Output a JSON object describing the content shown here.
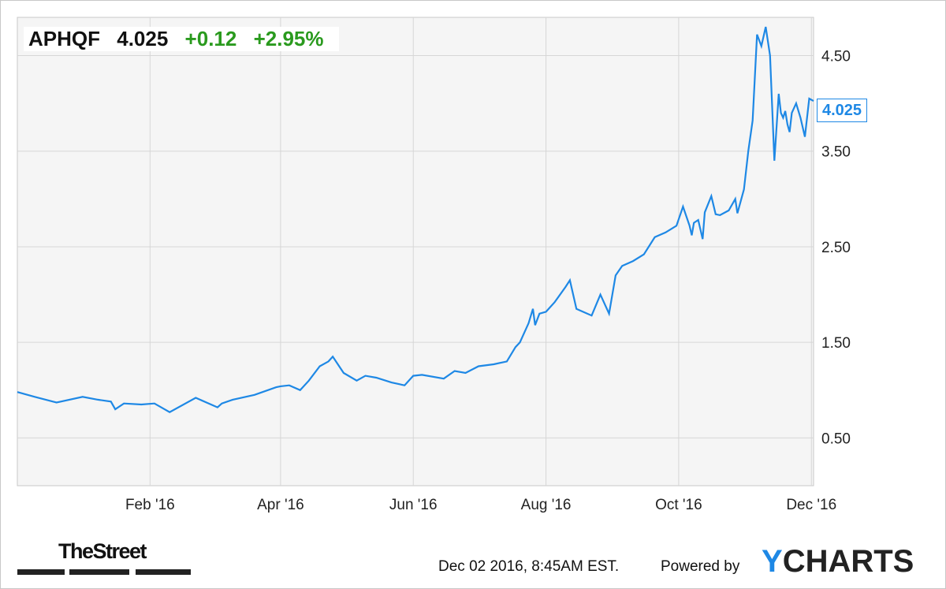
{
  "header": {
    "ticker": "APHQF",
    "price": "4.025",
    "change": "+0.12",
    "change_pct": "+2.95%"
  },
  "last_value_label": "4.025",
  "footer": {
    "timestamp": "Dec 02 2016, 8:45AM EST.",
    "powered_by": "Powered by",
    "brand_initial": "Y",
    "brand_rest": "CHARTS",
    "publisher_logo": "TheStreet"
  },
  "colors": {
    "line": "#1e88e5",
    "up": "#2a9a1e",
    "plot_bg": "#f5f5f5",
    "grid": "#d6d6d6"
  },
  "chart_data": {
    "type": "line",
    "title": "",
    "xlabel": "",
    "ylabel": "",
    "ylim": [
      0.0,
      4.9
    ],
    "xlim": [
      "2015-12-02",
      "2016-12-02"
    ],
    "y_ticks": [
      0.5,
      1.5,
      2.5,
      3.5,
      4.5
    ],
    "y_tick_labels": [
      "0.50",
      "1.50",
      "2.50",
      "3.50",
      "4.50"
    ],
    "x_ticks": [
      "2016-02-01",
      "2016-04-01",
      "2016-06-01",
      "2016-08-01",
      "2016-10-01",
      "2016-12-01"
    ],
    "x_tick_labels": [
      "Feb '16",
      "Apr '16",
      "Jun '16",
      "Aug '16",
      "Oct '16",
      "Dec '16"
    ],
    "grid": true,
    "y_axis_position": "right",
    "series": [
      {
        "x": [
          "2015-12-02",
          "2015-12-10",
          "2015-12-20",
          "2016-01-01",
          "2016-01-08",
          "2016-01-14",
          "2016-01-16",
          "2016-01-20",
          "2016-01-28",
          "2016-02-03",
          "2016-02-10",
          "2016-02-22",
          "2016-03-03",
          "2016-03-05",
          "2016-03-10",
          "2016-03-20",
          "2016-03-30",
          "2016-04-01",
          "2016-04-05",
          "2016-04-10",
          "2016-04-14",
          "2016-04-19",
          "2016-04-23",
          "2016-04-25",
          "2016-04-30",
          "2016-05-06",
          "2016-05-10",
          "2016-05-15",
          "2016-05-22",
          "2016-05-28",
          "2016-06-01",
          "2016-06-05",
          "2016-06-15",
          "2016-06-20",
          "2016-06-25",
          "2016-07-01",
          "2016-07-08",
          "2016-07-14",
          "2016-07-18",
          "2016-07-20",
          "2016-07-24",
          "2016-07-26",
          "2016-07-27",
          "2016-07-29",
          "2016-08-01",
          "2016-08-05",
          "2016-08-10",
          "2016-08-12",
          "2016-08-15",
          "2016-08-18",
          "2016-08-22",
          "2016-08-26",
          "2016-08-30",
          "2016-09-02",
          "2016-09-05",
          "2016-09-10",
          "2016-09-15",
          "2016-09-20",
          "2016-09-25",
          "2016-09-30",
          "2016-10-03",
          "2016-10-06",
          "2016-10-07",
          "2016-10-08",
          "2016-10-10",
          "2016-10-12",
          "2016-10-13",
          "2016-10-16",
          "2016-10-18",
          "2016-10-20",
          "2016-10-24",
          "2016-10-27",
          "2016-10-28",
          "2016-10-31",
          "2016-11-02",
          "2016-11-04",
          "2016-11-06",
          "2016-11-08",
          "2016-11-10",
          "2016-11-12",
          "2016-11-14",
          "2016-11-16",
          "2016-11-17",
          "2016-11-18",
          "2016-11-19",
          "2016-11-20",
          "2016-11-21",
          "2016-11-22",
          "2016-11-24",
          "2016-11-26",
          "2016-11-28",
          "2016-11-30",
          "2016-12-02"
        ],
        "values": [
          0.98,
          0.93,
          0.87,
          0.93,
          0.9,
          0.88,
          0.8,
          0.86,
          0.85,
          0.86,
          0.77,
          0.92,
          0.82,
          0.86,
          0.9,
          0.95,
          1.03,
          1.04,
          1.05,
          1.0,
          1.1,
          1.25,
          1.3,
          1.35,
          1.18,
          1.1,
          1.15,
          1.13,
          1.08,
          1.05,
          1.15,
          1.16,
          1.12,
          1.2,
          1.18,
          1.25,
          1.27,
          1.3,
          1.45,
          1.5,
          1.7,
          1.85,
          1.68,
          1.8,
          1.82,
          1.92,
          2.08,
          2.15,
          1.85,
          1.82,
          1.78,
          2.0,
          1.8,
          2.2,
          2.3,
          2.35,
          2.42,
          2.6,
          2.65,
          2.72,
          2.92,
          2.72,
          2.62,
          2.75,
          2.78,
          2.58,
          2.86,
          3.03,
          2.84,
          2.83,
          2.88,
          3.0,
          2.85,
          3.1,
          3.5,
          3.82,
          4.72,
          4.6,
          4.8,
          4.5,
          3.4,
          4.1,
          3.9,
          3.85,
          3.92,
          3.78,
          3.7,
          3.9,
          4.0,
          3.85,
          3.65,
          4.05,
          4.025
        ]
      }
    ]
  }
}
